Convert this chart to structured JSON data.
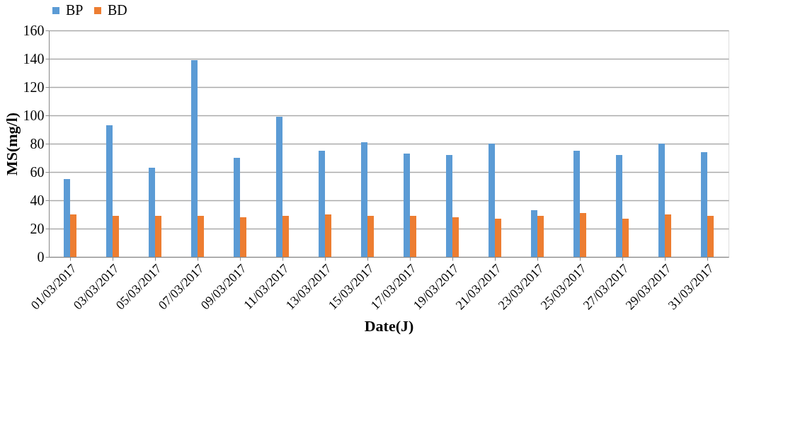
{
  "chart_data": {
    "type": "bar",
    "xlabel": "Date(J)",
    "ylabel": "MS(mg/l)",
    "categories": [
      "01/03/2017",
      "03/03/2017",
      "05/03/2017",
      "07/03/2017",
      "09/03/2017",
      "11/03/2017",
      "13/03/2017",
      "15/03/2017",
      "17/03/2017",
      "19/03/2017",
      "21/03/2017",
      "23/03/2017",
      "25/03/2017",
      "27/03/2017",
      "29/03/2017",
      "31/03/2017"
    ],
    "series": [
      {
        "name": "BP",
        "color": "#5b9bd5",
        "values": [
          55,
          93,
          63,
          139,
          70,
          99,
          75,
          81,
          73,
          72,
          80,
          33,
          75,
          72,
          80,
          74
        ]
      },
      {
        "name": "BD",
        "color": "#ed7d31",
        "values": [
          30,
          29,
          29,
          29,
          28,
          29,
          30,
          29,
          29,
          28,
          27,
          29,
          31,
          27,
          30,
          29
        ]
      }
    ],
    "ylim": [
      0,
      160
    ],
    "yticks": [
      0,
      20,
      40,
      60,
      80,
      100,
      120,
      140,
      160
    ],
    "grid": "y",
    "legend": "top"
  }
}
